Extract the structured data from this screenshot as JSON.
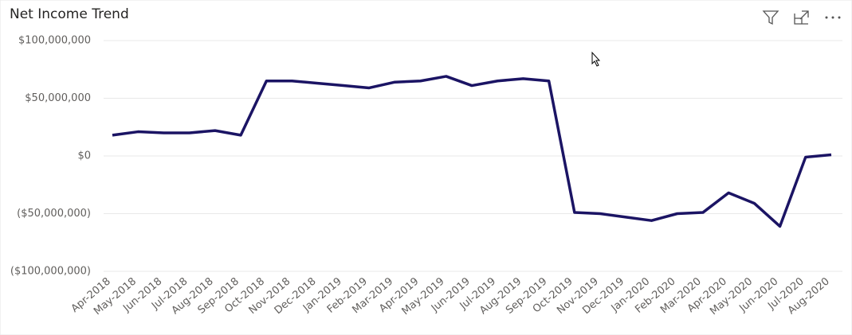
{
  "chart_data": {
    "type": "line",
    "title": "Net Income Trend",
    "categories": [
      "Apr-2018",
      "May-2018",
      "Jun-2018",
      "Jul-2018",
      "Aug-2018",
      "Sep-2018",
      "Oct-2018",
      "Nov-2018",
      "Dec-2018",
      "Jan-2019",
      "Feb-2019",
      "Mar-2019",
      "Apr-2019",
      "May-2019",
      "Jun-2019",
      "Jul-2019",
      "Aug-2019",
      "Sep-2019",
      "Oct-2019",
      "Nov-2019",
      "Dec-2019",
      "Jan-2020",
      "Feb-2020",
      "Mar-2020",
      "Apr-2020",
      "May-2020",
      "Jun-2020",
      "Jul-2020",
      "Aug-2020"
    ],
    "series": [
      {
        "color": "#1b1464",
        "values": [
          18000000,
          21000000,
          20000000,
          20000000,
          22000000,
          18000000,
          65000000,
          65000000,
          63000000,
          61000000,
          59000000,
          64000000,
          65000000,
          69000000,
          61000000,
          65000000,
          67000000,
          65000000,
          -49000000,
          -50000000,
          -53000000,
          -56000000,
          -50000000,
          -49000000,
          -32000000,
          -41000000,
          -61000000,
          -1000000,
          1000000
        ]
      }
    ],
    "ylim": [
      -100000000,
      100000000
    ],
    "yticks": [
      {
        "value": -100000000,
        "label": "($100,000,000)"
      },
      {
        "value": -50000000,
        "label": "($50,000,000)"
      },
      {
        "value": 0,
        "label": "$0"
      },
      {
        "value": 50000000,
        "label": "$50,000,000"
      },
      {
        "value": 100000000,
        "label": "$100,000,000"
      }
    ],
    "grid": true
  }
}
